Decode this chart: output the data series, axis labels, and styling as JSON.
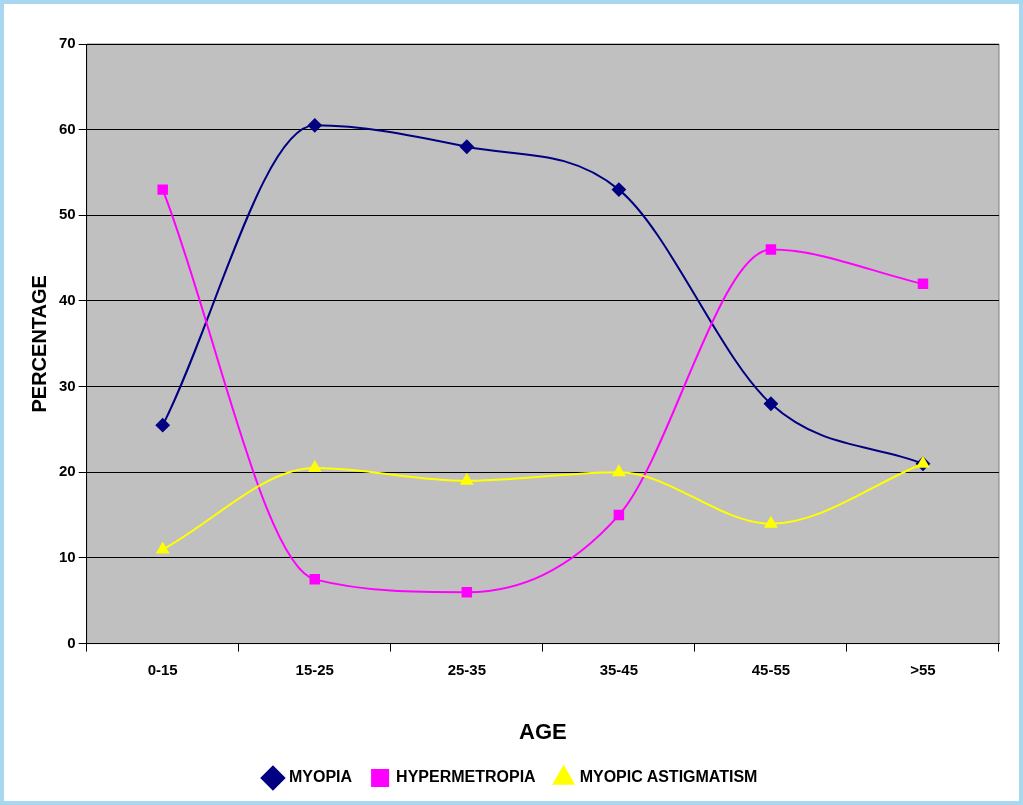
{
  "chart_data": {
    "type": "line",
    "xlabel": "AGE",
    "ylabel": "PERCENTAGE",
    "categories": [
      "0-15",
      "15-25",
      "25-35",
      "35-45",
      "45-55",
      ">55"
    ],
    "series": [
      {
        "name": "MYOPIA",
        "color": "#000080",
        "marker": "diamond",
        "values": [
          25.5,
          60.5,
          58,
          53,
          28,
          21
        ]
      },
      {
        "name": "HYPERMETROPIA",
        "color": "#ff00ff",
        "marker": "square",
        "values": [
          53,
          7.5,
          6,
          15,
          46,
          42
        ]
      },
      {
        "name": "MYOPIC ASTIGMATISM",
        "color": "#ffff00",
        "marker": "triangle",
        "values": [
          11,
          20.5,
          19,
          20,
          14,
          21
        ]
      }
    ],
    "ylim": [
      0,
      70
    ],
    "yticks": [
      0,
      10,
      20,
      30,
      40,
      50,
      60,
      70
    ],
    "grid": "y",
    "legend": "bottom"
  }
}
